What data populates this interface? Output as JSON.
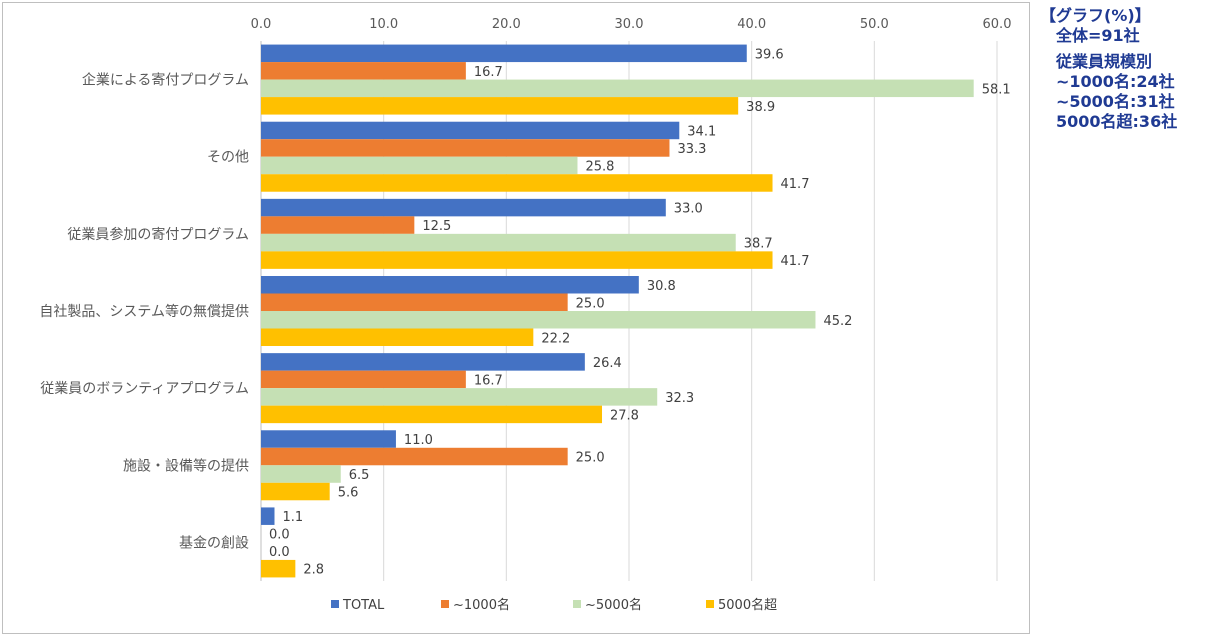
{
  "note": {
    "title": "【グラフ(%)】",
    "line1": "全体=91社",
    "line2": "従業員規模別",
    "line3": "~1000名:24社",
    "line4": "~5000名:31社",
    "line5": "5000名超:36社"
  },
  "chart_data": {
    "type": "bar",
    "orientation": "horizontal",
    "title": "",
    "xlabel": "",
    "ylabel": "",
    "xlim": [
      0,
      60
    ],
    "x_ticks": [
      "0.0",
      "10.0",
      "20.0",
      "30.0",
      "40.0",
      "50.0",
      "60.0"
    ],
    "grid": true,
    "legend_position": "bottom",
    "categories": [
      "企業による寄付プログラム",
      "その他",
      "従業員参加の寄付プログラム",
      "自社製品、システム等の無償提供",
      "従業員のボランティアプログラム",
      "施設・設備等の提供",
      "基金の創設"
    ],
    "series": [
      {
        "name": "TOTAL",
        "color": "#4472c4",
        "values": [
          39.6,
          34.1,
          33.0,
          30.8,
          26.4,
          11.0,
          1.1
        ],
        "labels": [
          "39.6",
          "34.1",
          "33.0",
          "30.8",
          "26.4",
          "11.0",
          "1.1"
        ]
      },
      {
        "name": "~1000名",
        "color": "#ed7d31",
        "values": [
          16.7,
          33.3,
          12.5,
          25.0,
          16.7,
          25.0,
          0.0
        ],
        "labels": [
          "16.7",
          "33.3",
          "12.5",
          "25.0",
          "16.7",
          "25.0",
          "0.0"
        ]
      },
      {
        "name": "~5000名",
        "color": "#c5e0b4",
        "values": [
          58.1,
          25.8,
          38.7,
          45.2,
          32.3,
          6.5,
          0.0
        ],
        "labels": [
          "58.1",
          "25.8",
          "38.7",
          "45.2",
          "32.3",
          "6.5",
          "0.0"
        ]
      },
      {
        "name": "5000名超",
        "color": "#ffc000",
        "values": [
          38.9,
          41.7,
          41.7,
          22.2,
          27.8,
          5.6,
          2.8
        ],
        "labels": [
          "38.9",
          "41.7",
          "41.7",
          "22.2",
          "27.8",
          "5.6",
          "2.8"
        ]
      }
    ]
  }
}
